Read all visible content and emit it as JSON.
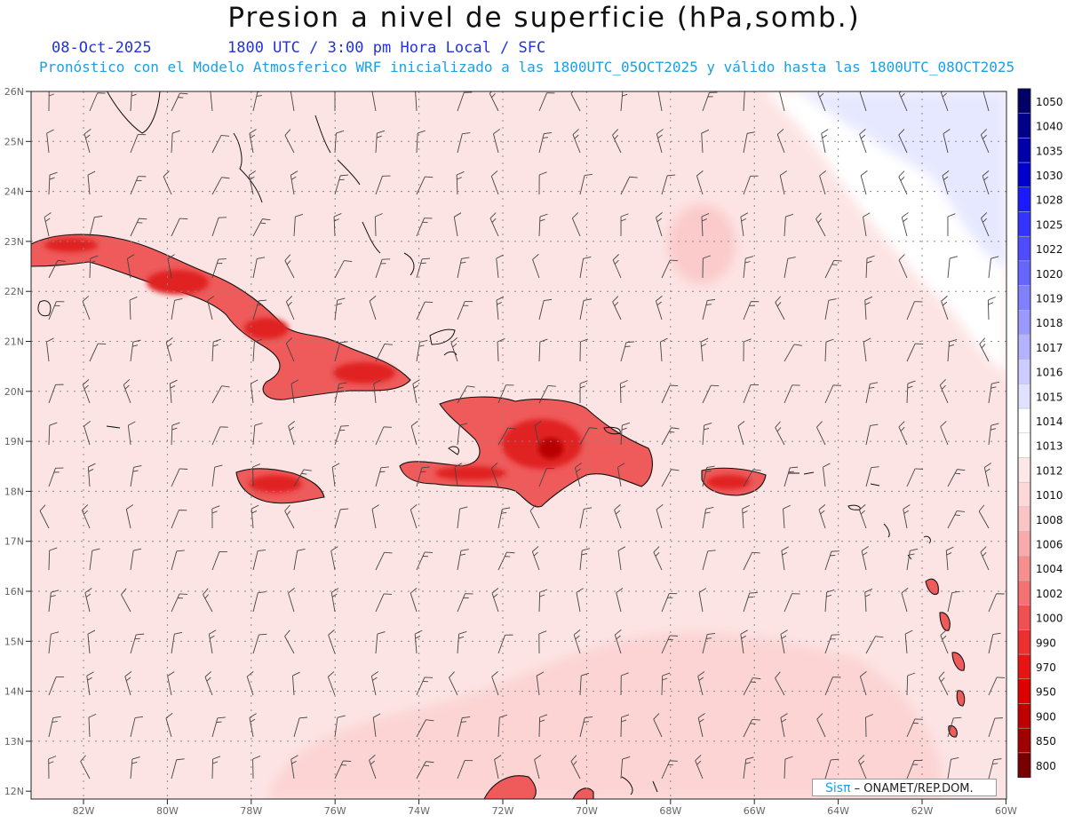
{
  "title": "Presion a nivel de superficie (hPa,somb.)",
  "date": "08-Oct-2025",
  "time_info": "1800 UTC / 3:00 pm Hora Local / SFC",
  "forecast_info": "Pronóstico con el Modelo Atmosferico WRF inicializado a las 1800UTC_05OCT2025 y válido hasta las  1800UTC_08OCT2025",
  "credit": {
    "brand": "Sisπ",
    "org": "– ONAMET/REP.DOM."
  },
  "lat_labels": [
    "26N",
    "25N",
    "24N",
    "23N",
    "22N",
    "21N",
    "20N",
    "19N",
    "18N",
    "17N",
    "16N",
    "15N",
    "14N",
    "13N",
    "12N"
  ],
  "lon_labels": [
    "82W",
    "80W",
    "78W",
    "76W",
    "74W",
    "72W",
    "70W",
    "68W",
    "66W",
    "64W",
    "62W",
    "60W"
  ],
  "legend": {
    "labels": [
      "1050",
      "1040",
      "1035",
      "1030",
      "1028",
      "1025",
      "1022",
      "1020",
      "1019",
      "1018",
      "1017",
      "1016",
      "1015",
      "1014",
      "1013",
      "1012",
      "1010",
      "1008",
      "1006",
      "1004",
      "1002",
      "1000",
      "990",
      "970",
      "950",
      "900",
      "850",
      "800"
    ],
    "colors": [
      "#000066",
      "#00008b",
      "#0000aa",
      "#0000cc",
      "#1a1aff",
      "#3333ff",
      "#4d4dff",
      "#6666ff",
      "#8080ff",
      "#9999ff",
      "#b3b3ff",
      "#ccccff",
      "#e0e0ff",
      "#ffffff",
      "#ffffff",
      "#fde8e8",
      "#fcd8d8",
      "#fbc4c4",
      "#f9aaaa",
      "#f78f8f",
      "#f47272",
      "#f05050",
      "#ec3030",
      "#e81414",
      "#dc0000",
      "#c00000",
      "#a00000",
      "#7a0000"
    ]
  },
  "colors": {
    "land_low_pressure": "#e8282f",
    "sea_background": "#fde4e4",
    "high_pressure": "#e6e8ff"
  }
}
